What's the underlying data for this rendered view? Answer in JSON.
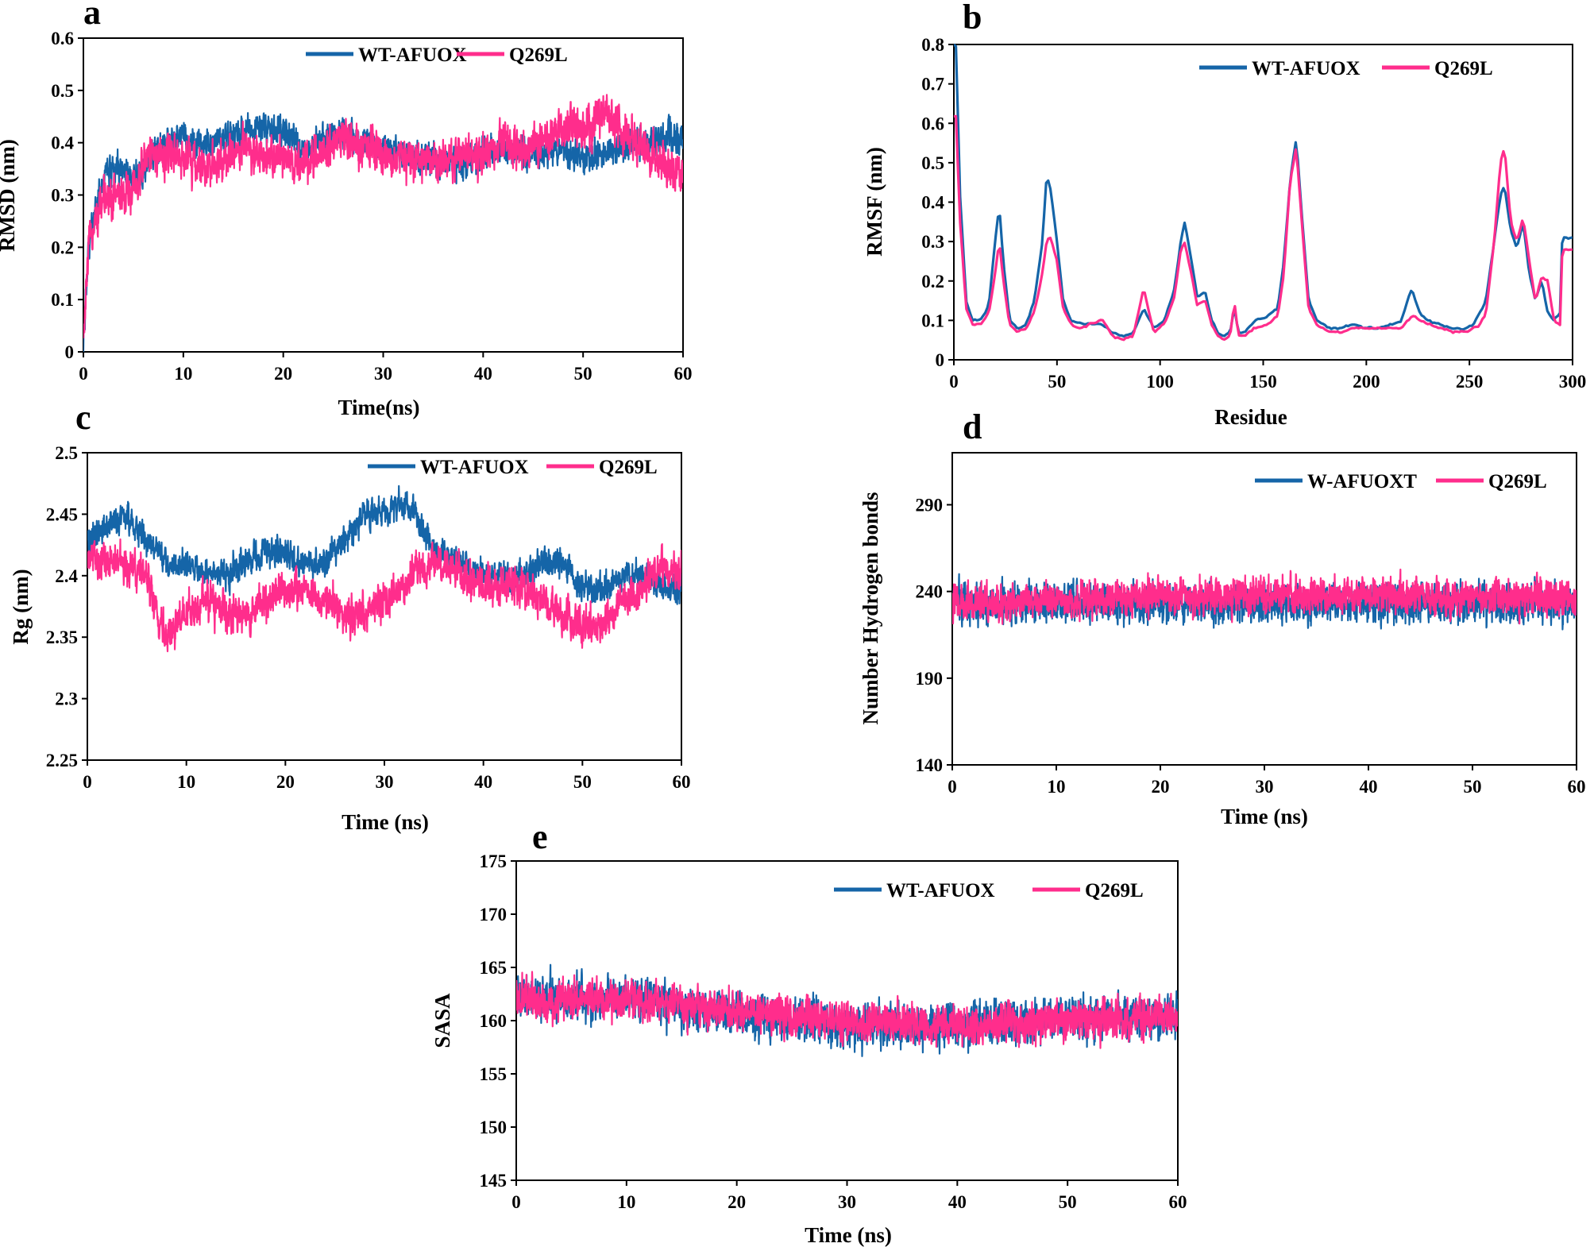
{
  "colors": {
    "wt": "#1565a8",
    "mut": "#ff2d8c",
    "axis": "#000000"
  },
  "chart_data": [
    {
      "panel": "a",
      "type": "line",
      "xlabel": "Time(ns)",
      "ylabel": "RMSD (nm)",
      "xlim": [
        0,
        60
      ],
      "ylim": [
        0,
        0.6
      ],
      "xticks": [
        "0",
        "10",
        "20",
        "30",
        "40",
        "50",
        "60"
      ],
      "yticks": [
        "0",
        "0.1",
        "0.2",
        "0.3",
        "0.4",
        "0.5",
        "0.6"
      ],
      "legend_position": "top-right",
      "series": [
        {
          "name": "WT-AFUOX",
          "x": [
            0,
            0.5,
            1,
            2,
            3,
            4,
            5,
            6,
            7,
            8,
            10,
            12,
            14,
            16,
            18,
            20,
            22,
            24,
            26,
            28,
            30,
            32,
            34,
            36,
            38,
            40,
            42,
            44,
            46,
            48,
            50,
            52,
            54,
            56,
            58,
            60
          ],
          "y": [
            0.0,
            0.2,
            0.26,
            0.33,
            0.36,
            0.35,
            0.33,
            0.35,
            0.38,
            0.4,
            0.41,
            0.4,
            0.41,
            0.42,
            0.43,
            0.42,
            0.39,
            0.41,
            0.42,
            0.4,
            0.39,
            0.38,
            0.37,
            0.36,
            0.36,
            0.38,
            0.39,
            0.38,
            0.38,
            0.39,
            0.37,
            0.38,
            0.39,
            0.4,
            0.41,
            0.4
          ],
          "noise": 0.03,
          "samples": 2400
        },
        {
          "name": "Q269L",
          "x": [
            0,
            0.5,
            1,
            2,
            3,
            4,
            5,
            6,
            7,
            8,
            10,
            12,
            14,
            16,
            18,
            20,
            22,
            24,
            26,
            28,
            30,
            32,
            34,
            36,
            38,
            40,
            42,
            44,
            46,
            48,
            50,
            52,
            54,
            56,
            58,
            60
          ],
          "y": [
            0.0,
            0.2,
            0.24,
            0.29,
            0.3,
            0.3,
            0.31,
            0.36,
            0.37,
            0.38,
            0.37,
            0.35,
            0.37,
            0.39,
            0.38,
            0.37,
            0.36,
            0.38,
            0.41,
            0.39,
            0.38,
            0.37,
            0.37,
            0.36,
            0.38,
            0.38,
            0.4,
            0.39,
            0.4,
            0.43,
            0.42,
            0.46,
            0.42,
            0.39,
            0.36,
            0.35
          ],
          "noise": 0.04,
          "samples": 2400
        }
      ]
    },
    {
      "panel": "b",
      "type": "line",
      "xlabel": "Residue",
      "ylabel": "RMSF (nm)",
      "xlim": [
        0,
        300
      ],
      "ylim": [
        0,
        0.8
      ],
      "xticks": [
        "0",
        "50",
        "100",
        "150",
        "200",
        "250",
        "300"
      ],
      "yticks": [
        "0",
        "0.1",
        "0.2",
        "0.3",
        "0.4",
        "0.5",
        "0.6",
        "0.7",
        "0.8"
      ],
      "legend_position": "top-right",
      "series": [
        {
          "name": "WT-AFUOX",
          "x": [
            1,
            3,
            6,
            9,
            13,
            17,
            20,
            22,
            24,
            27,
            31,
            35,
            39,
            43,
            45,
            47,
            50,
            53,
            57,
            62,
            67,
            72,
            77,
            82,
            87,
            92,
            97,
            102,
            107,
            110,
            112,
            115,
            118,
            122,
            125,
            128,
            131,
            134,
            136,
            138,
            141,
            146,
            152,
            157,
            160,
            163,
            166,
            169,
            172,
            176,
            182,
            188,
            194,
            200,
            206,
            212,
            217,
            220,
            222,
            226,
            230,
            236,
            242,
            248,
            252,
            255,
            258,
            262,
            265,
            267,
            270,
            273,
            276,
            279,
            282,
            285,
            288,
            291,
            294,
            295
          ],
          "y": [
            0.8,
            0.42,
            0.15,
            0.1,
            0.1,
            0.14,
            0.3,
            0.39,
            0.25,
            0.1,
            0.08,
            0.09,
            0.15,
            0.3,
            0.47,
            0.43,
            0.3,
            0.15,
            0.1,
            0.09,
            0.09,
            0.09,
            0.07,
            0.06,
            0.07,
            0.13,
            0.08,
            0.1,
            0.18,
            0.3,
            0.35,
            0.26,
            0.16,
            0.17,
            0.1,
            0.07,
            0.06,
            0.07,
            0.13,
            0.07,
            0.07,
            0.1,
            0.11,
            0.13,
            0.25,
            0.45,
            0.56,
            0.35,
            0.15,
            0.1,
            0.08,
            0.08,
            0.09,
            0.08,
            0.08,
            0.09,
            0.1,
            0.15,
            0.18,
            0.12,
            0.1,
            0.09,
            0.08,
            0.08,
            0.09,
            0.12,
            0.15,
            0.3,
            0.42,
            0.44,
            0.33,
            0.28,
            0.35,
            0.22,
            0.15,
            0.2,
            0.12,
            0.1,
            0.12,
            0.31
          ],
          "noise": 0.003,
          "samples": 296
        },
        {
          "name": "Q269L",
          "x": [
            1,
            3,
            6,
            9,
            13,
            17,
            20,
            22,
            24,
            27,
            31,
            35,
            39,
            43,
            45,
            47,
            50,
            53,
            57,
            62,
            67,
            72,
            77,
            82,
            87,
            92,
            97,
            102,
            107,
            110,
            112,
            115,
            118,
            122,
            125,
            128,
            131,
            134,
            136,
            138,
            141,
            146,
            152,
            157,
            160,
            163,
            166,
            169,
            172,
            176,
            182,
            188,
            194,
            200,
            206,
            212,
            217,
            220,
            222,
            226,
            230,
            236,
            242,
            248,
            252,
            255,
            258,
            262,
            265,
            267,
            270,
            273,
            276,
            279,
            282,
            285,
            288,
            291,
            294,
            295
          ],
          "y": [
            0.62,
            0.35,
            0.13,
            0.09,
            0.09,
            0.12,
            0.22,
            0.3,
            0.2,
            0.09,
            0.07,
            0.08,
            0.12,
            0.22,
            0.3,
            0.31,
            0.25,
            0.13,
            0.09,
            0.08,
            0.09,
            0.1,
            0.06,
            0.05,
            0.06,
            0.18,
            0.07,
            0.09,
            0.16,
            0.28,
            0.3,
            0.22,
            0.14,
            0.15,
            0.09,
            0.06,
            0.05,
            0.06,
            0.15,
            0.06,
            0.06,
            0.08,
            0.09,
            0.11,
            0.22,
            0.45,
            0.54,
            0.33,
            0.13,
            0.09,
            0.07,
            0.07,
            0.08,
            0.08,
            0.08,
            0.08,
            0.08,
            0.1,
            0.11,
            0.1,
            0.09,
            0.08,
            0.07,
            0.07,
            0.08,
            0.09,
            0.12,
            0.3,
            0.5,
            0.54,
            0.35,
            0.3,
            0.36,
            0.25,
            0.15,
            0.21,
            0.2,
            0.1,
            0.09,
            0.28
          ],
          "noise": 0.003,
          "samples": 296
        }
      ]
    },
    {
      "panel": "c",
      "type": "line",
      "xlabel": "Time (ns)",
      "ylabel": "Rg (nm)",
      "xlim": [
        0,
        60
      ],
      "ylim": [
        2.25,
        2.5
      ],
      "xticks": [
        "0",
        "10",
        "20",
        "30",
        "40",
        "50",
        "60"
      ],
      "yticks": [
        "2.25",
        "2.3",
        "2.35",
        "2.4",
        "2.45",
        "2.5"
      ],
      "legend_position": "top-right",
      "series": [
        {
          "name": "WT-AFUOX",
          "x": [
            0,
            2,
            4,
            6,
            7,
            8,
            10,
            12,
            14,
            16,
            18,
            20,
            22,
            24,
            26,
            28,
            30,
            32,
            33,
            35,
            38,
            40,
            42,
            44,
            46,
            48,
            50,
            52,
            54,
            56,
            58,
            60
          ],
          "y": [
            2.43,
            2.44,
            2.45,
            2.43,
            2.42,
            2.41,
            2.41,
            2.4,
            2.4,
            2.41,
            2.42,
            2.42,
            2.41,
            2.41,
            2.43,
            2.45,
            2.45,
            2.46,
            2.45,
            2.42,
            2.41,
            2.4,
            2.4,
            2.4,
            2.41,
            2.41,
            2.39,
            2.39,
            2.4,
            2.4,
            2.39,
            2.39
          ],
          "noise": 0.012,
          "samples": 2400
        },
        {
          "name": "Q269L",
          "x": [
            0,
            2,
            4,
            6,
            7,
            8,
            10,
            12,
            14,
            16,
            18,
            20,
            22,
            24,
            26,
            28,
            30,
            32,
            33,
            35,
            38,
            40,
            42,
            44,
            46,
            48,
            50,
            52,
            54,
            56,
            58,
            60
          ],
          "y": [
            2.41,
            2.41,
            2.41,
            2.4,
            2.37,
            2.35,
            2.37,
            2.38,
            2.37,
            2.37,
            2.38,
            2.39,
            2.39,
            2.38,
            2.37,
            2.37,
            2.38,
            2.39,
            2.4,
            2.41,
            2.4,
            2.39,
            2.39,
            2.39,
            2.38,
            2.37,
            2.36,
            2.36,
            2.38,
            2.39,
            2.41,
            2.4
          ],
          "noise": 0.016,
          "samples": 2400
        }
      ]
    },
    {
      "panel": "d",
      "type": "line",
      "xlabel": "Time (ns)",
      "ylabel": "Number Hydrogen bonds",
      "xlim": [
        0,
        60
      ],
      "ylim": [
        140,
        320
      ],
      "xticks": [
        "0",
        "10",
        "20",
        "30",
        "40",
        "50",
        "60"
      ],
      "yticks": [
        "140",
        "190",
        "240",
        "290"
      ],
      "legend_position": "top-right",
      "series": [
        {
          "name": "W-AFUOXT",
          "x": [
            0,
            60
          ],
          "y": [
            233,
            233
          ],
          "noise": 11,
          "samples": 3000
        },
        {
          "name": "Q269L",
          "x": [
            0,
            20,
            40,
            60
          ],
          "y": [
            233,
            237,
            238,
            236
          ],
          "noise": 10,
          "samples": 3000
        }
      ]
    },
    {
      "panel": "e",
      "type": "line",
      "xlabel": "Time (ns)",
      "ylabel": "SASA",
      "xlim": [
        0,
        60
      ],
      "ylim": [
        145,
        175
      ],
      "xticks": [
        "0",
        "10",
        "20",
        "30",
        "40",
        "50",
        "60"
      ],
      "yticks": [
        "145",
        "150",
        "155",
        "160",
        "165",
        "170",
        "175"
      ],
      "legend_position": "top-right",
      "series": [
        {
          "name": "WT-AFUOX",
          "x": [
            0,
            10,
            20,
            30,
            40,
            50,
            60
          ],
          "y": [
            162,
            162,
            160.5,
            159.5,
            159.5,
            160,
            160.5
          ],
          "noise": 2.0,
          "samples": 3000
        },
        {
          "name": "Q269L",
          "x": [
            0,
            10,
            20,
            30,
            40,
            50,
            60
          ],
          "y": [
            162,
            162,
            161,
            160,
            159.5,
            160,
            160.5
          ],
          "noise": 1.8,
          "samples": 3000
        }
      ]
    }
  ]
}
